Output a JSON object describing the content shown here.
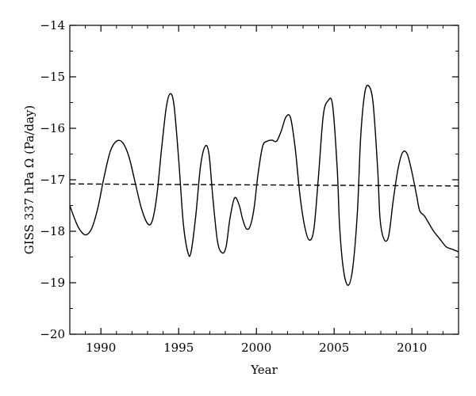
{
  "chart_data": {
    "type": "line",
    "xlabel": "Year",
    "ylabel": "GISS 337 hPa Ω (Pa/day)",
    "xlim": [
      1988,
      2013
    ],
    "ylim": [
      -20,
      -14
    ],
    "xticks": [
      1990,
      1995,
      2000,
      2005,
      2010
    ],
    "yticks": [
      -20,
      -19,
      -18,
      -17,
      -16,
      -15,
      -14
    ],
    "xtick_labels": [
      "1990",
      "1995",
      "2000",
      "2005",
      "2010"
    ],
    "ytick_labels": [
      "−20",
      "−19",
      "−18",
      "−17",
      "−16",
      "−15",
      "−14"
    ],
    "grid": false,
    "series": [
      {
        "style": "solid",
        "x": [
          1988.0,
          1988.3,
          1988.6,
          1989.0,
          1989.4,
          1989.8,
          1990.2,
          1990.6,
          1991.0,
          1991.4,
          1991.8,
          1992.2,
          1992.6,
          1993.0,
          1993.3,
          1993.6,
          1993.9,
          1994.2,
          1994.45,
          1994.7,
          1995.0,
          1995.3,
          1995.6,
          1995.8,
          1996.1,
          1996.4,
          1996.7,
          1996.95,
          1997.2,
          1997.5,
          1997.8,
          1998.05,
          1998.3,
          1998.6,
          1998.9,
          1999.1,
          1999.35,
          1999.6,
          1999.85,
          2000.1,
          2000.4,
          2000.7,
          2001.0,
          2001.3,
          2001.6,
          2001.9,
          2002.2,
          2002.5,
          2002.8,
          2003.1,
          2003.4,
          2003.7,
          2004.0,
          2004.3,
          2004.6,
          2004.9,
          2005.2,
          2005.35,
          2005.6,
          2005.9,
          2006.2,
          2006.5,
          2006.7,
          2006.95,
          2007.2,
          2007.5,
          2007.8,
          2007.95,
          2008.2,
          2008.5,
          2008.8,
          2009.1,
          2009.4,
          2009.7,
          2010.0,
          2010.3,
          2010.5,
          2010.8,
          2011.1,
          2011.4,
          2011.8,
          2012.2,
          2012.6,
          2013.0
        ],
        "y": [
          -17.5,
          -17.75,
          -17.95,
          -18.07,
          -17.95,
          -17.55,
          -16.95,
          -16.45,
          -16.25,
          -16.28,
          -16.55,
          -17.05,
          -17.55,
          -17.85,
          -17.8,
          -17.3,
          -16.4,
          -15.6,
          -15.33,
          -15.55,
          -16.6,
          -17.85,
          -18.42,
          -18.4,
          -17.7,
          -16.75,
          -16.35,
          -16.5,
          -17.35,
          -18.2,
          -18.42,
          -18.3,
          -17.75,
          -17.35,
          -17.5,
          -17.75,
          -17.95,
          -17.9,
          -17.55,
          -16.9,
          -16.35,
          -16.25,
          -16.23,
          -16.25,
          -16.05,
          -15.78,
          -15.8,
          -16.4,
          -17.3,
          -17.9,
          -18.17,
          -17.95,
          -16.9,
          -15.75,
          -15.47,
          -15.55,
          -16.8,
          -17.9,
          -18.75,
          -19.05,
          -18.7,
          -17.6,
          -16.2,
          -15.35,
          -15.17,
          -15.5,
          -16.8,
          -17.75,
          -18.15,
          -18.1,
          -17.4,
          -16.8,
          -16.47,
          -16.5,
          -16.85,
          -17.3,
          -17.6,
          -17.7,
          -17.85,
          -18.0,
          -18.15,
          -18.3,
          -18.35,
          -18.4
        ]
      },
      {
        "style": "dashed",
        "x": [
          1988,
          2013
        ],
        "y": [
          -17.08,
          -17.12
        ]
      }
    ]
  }
}
